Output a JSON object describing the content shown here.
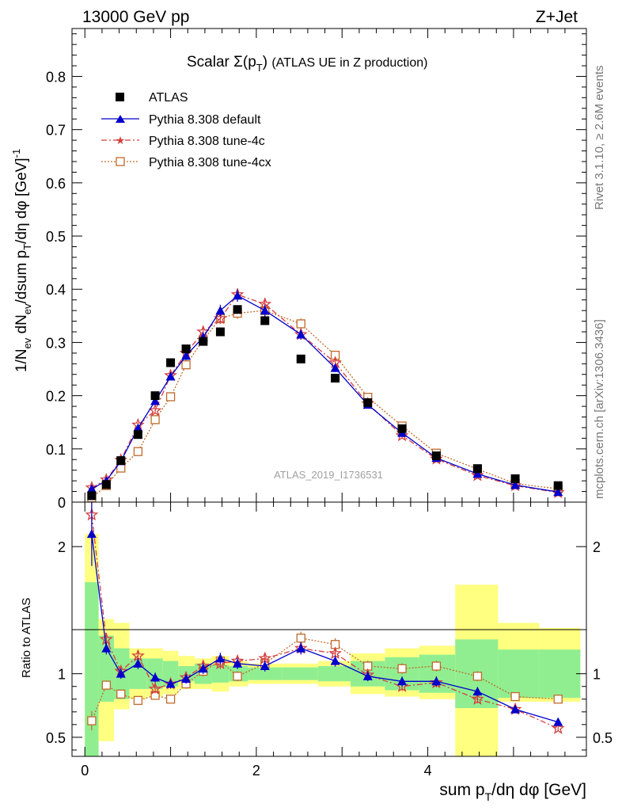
{
  "header": {
    "left": "13000 GeV pp",
    "right": "Z+Jet"
  },
  "side_text": {
    "rivet": "Rivet 3.1.10, ≥ 2.6M events",
    "mcplots": "mcplots.cern.ch [arXiv:1306.3436]"
  },
  "watermark": "ATLAS_2019_I1736531",
  "colors": {
    "atlas": "#000000",
    "default": "#0000cc",
    "tune4c": "#d43f3f",
    "tune4cx": "#c06a2a",
    "band_green": "#90ee90",
    "band_yellow": "#ffff80"
  },
  "chart_data": [
    {
      "type": "line",
      "title": "Scalar Σ(pT) (ATLAS UE in Z production)",
      "ylabel": "1/Nev dNev/dsum pT/dη dφ [GeV]^-1",
      "xlim": [
        -0.15,
        5.85
      ],
      "ylim": [
        0,
        0.89
      ],
      "yticks": [
        "0",
        "0.1",
        "0.2",
        "0.3",
        "0.4",
        "0.5",
        "0.6",
        "0.7",
        "0.8"
      ],
      "legend_position": "top-left",
      "legend": [
        "ATLAS",
        "Pythia 8.308 default",
        "Pythia 8.308 tune-4c",
        "Pythia 8.308 tune-4cx"
      ],
      "x": [
        0.08,
        0.25,
        0.42,
        0.62,
        0.82,
        1.0,
        1.18,
        1.38,
        1.58,
        1.78,
        2.1,
        2.52,
        2.92,
        3.3,
        3.7,
        4.1,
        4.58,
        5.02,
        5.52
      ],
      "series": [
        {
          "name": "ATLAS",
          "values": [
            0.012,
            0.033,
            0.078,
            0.127,
            0.2,
            0.262,
            0.288,
            0.302,
            0.32,
            0.362,
            0.341,
            0.269,
            0.233,
            0.187,
            0.138,
            0.087,
            0.063,
            0.044,
            0.031
          ]
        },
        {
          "name": "Pythia 8.308 default",
          "values": [
            0.025,
            0.04,
            0.077,
            0.139,
            0.19,
            0.236,
            0.275,
            0.31,
            0.36,
            0.388,
            0.36,
            0.315,
            0.252,
            0.183,
            0.13,
            0.083,
            0.053,
            0.032,
            0.019
          ]
        },
        {
          "name": "Pythia 8.308 tune-4c",
          "values": [
            0.027,
            0.042,
            0.079,
            0.145,
            0.172,
            0.238,
            0.28,
            0.32,
            0.345,
            0.39,
            0.372,
            0.315,
            0.262,
            0.185,
            0.125,
            0.081,
            0.05,
            0.031,
            0.018
          ]
        },
        {
          "name": "Pythia 8.308 tune-4cx",
          "values": [
            0.008,
            0.031,
            0.064,
            0.095,
            0.155,
            0.198,
            0.258,
            0.305,
            0.345,
            0.355,
            0.36,
            0.335,
            0.276,
            0.197,
            0.143,
            0.092,
            0.062,
            0.035,
            0.025
          ]
        }
      ]
    },
    {
      "type": "line",
      "ylabel": "Ratio to ATLAS",
      "xlabel": "sum pT/dη dφ [GeV]",
      "xlim": [
        -0.15,
        5.85
      ],
      "ylim": [
        0.35,
        2.35
      ],
      "yticks": [
        "0.5",
        "1",
        "2"
      ],
      "xticks": [
        "0",
        "2",
        "4"
      ],
      "x": [
        0.08,
        0.25,
        0.42,
        0.62,
        0.82,
        1.0,
        1.18,
        1.38,
        1.58,
        1.78,
        2.1,
        2.52,
        2.92,
        3.3,
        3.7,
        4.1,
        4.58,
        5.02,
        5.52
      ],
      "series": [
        {
          "name": "Pythia 8.308 default",
          "values": [
            2.1,
            1.2,
            1.0,
            1.08,
            0.97,
            0.92,
            0.96,
            1.04,
            1.12,
            1.08,
            1.06,
            1.2,
            1.1,
            0.98,
            0.94,
            0.94,
            0.86,
            0.72,
            0.62
          ]
        },
        {
          "name": "Pythia 8.308 tune-4c",
          "values": [
            2.25,
            1.27,
            1.02,
            1.14,
            0.88,
            0.92,
            0.97,
            1.06,
            1.08,
            1.1,
            1.12,
            1.2,
            1.16,
            0.99,
            0.9,
            0.93,
            0.8,
            0.72,
            0.57
          ]
        },
        {
          "name": "Pythia 8.308 tune-4cx",
          "values": [
            0.63,
            0.91,
            0.84,
            0.79,
            0.83,
            0.8,
            0.92,
            1.02,
            1.1,
            0.98,
            1.08,
            1.28,
            1.23,
            1.06,
            1.04,
            1.06,
            0.98,
            0.82,
            0.8
          ]
        }
      ],
      "bands": {
        "edges": [
          0.0,
          0.16,
          0.34,
          0.52,
          0.72,
          0.91,
          1.09,
          1.28,
          1.48,
          1.68,
          1.9,
          2.3,
          2.72,
          3.1,
          3.5,
          3.9,
          4.32,
          4.82,
          5.3,
          5.78
        ],
        "green_low": [
          0.35,
          0.78,
          0.8,
          0.88,
          0.88,
          0.9,
          0.94,
          0.92,
          0.93,
          0.94,
          0.95,
          0.95,
          0.94,
          0.9,
          0.87,
          0.85,
          0.73,
          0.81,
          0.81
        ],
        "green_high": [
          1.72,
          1.3,
          1.2,
          1.12,
          1.12,
          1.1,
          1.06,
          1.08,
          1.07,
          1.06,
          1.05,
          1.05,
          1.06,
          1.1,
          1.13,
          1.15,
          1.27,
          1.19,
          1.19
        ],
        "yellow_low": [
          0.35,
          0.47,
          0.72,
          0.8,
          0.82,
          0.84,
          0.88,
          0.88,
          0.86,
          0.9,
          0.92,
          0.92,
          0.9,
          0.84,
          0.82,
          0.8,
          0.35,
          0.78,
          0.78
        ],
        "yellow_high": [
          2.1,
          1.43,
          1.4,
          1.2,
          1.2,
          1.18,
          1.14,
          1.12,
          1.14,
          1.1,
          1.08,
          1.08,
          1.1,
          1.16,
          1.2,
          1.22,
          1.7,
          1.4,
          1.36
        ]
      }
    }
  ]
}
